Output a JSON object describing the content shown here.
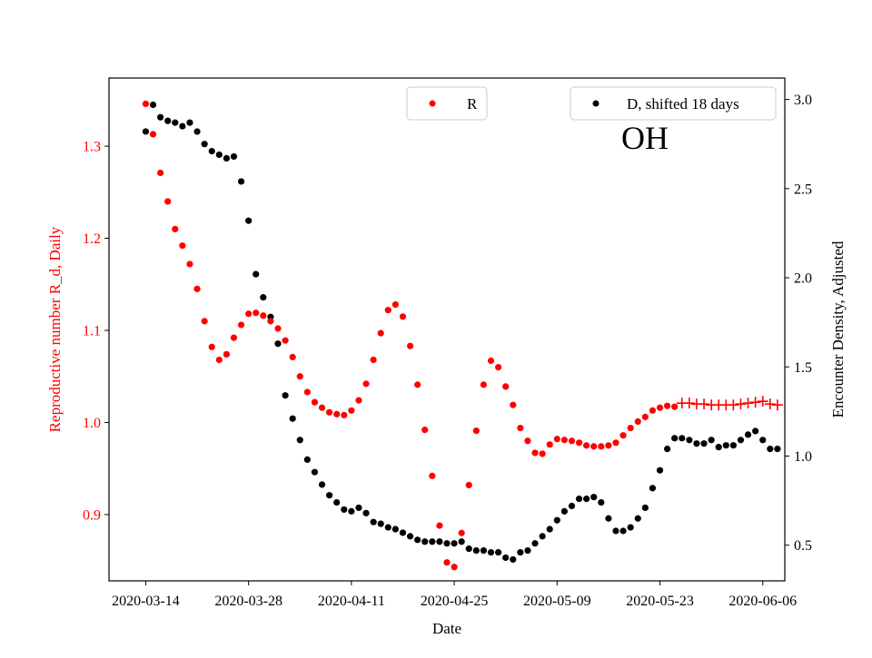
{
  "chart_data": {
    "type": "scatter",
    "title": "",
    "annotation": "OH",
    "xlabel": "Date",
    "ylabel_left": "Reproductive number R_d, Daily",
    "ylabel_right": "Encounter Density, Adjusted",
    "x_start_date": "2020-03-14",
    "x_ticks": [
      "2020-03-14",
      "2020-03-28",
      "2020-04-11",
      "2020-04-25",
      "2020-05-09",
      "2020-05-23",
      "2020-06-06"
    ],
    "x_lim": [
      "2020-03-09",
      "2020-06-09"
    ],
    "y_left_ticks": [
      "0.9",
      "1.0",
      "1.1",
      "1.2",
      "1.3"
    ],
    "y_left_lim": [
      0.828,
      1.374
    ],
    "y_right_ticks": [
      "0.5",
      "1.0",
      "1.5",
      "2.0",
      "2.5",
      "3.0"
    ],
    "y_right_lim": [
      0.3,
      3.12
    ],
    "colors": {
      "R": "#ff0000",
      "D": "#000000",
      "left_axis": "#ff0000",
      "right_axis": "#000000"
    },
    "legend_R": {
      "label": "R",
      "position": "top-center"
    },
    "legend_D": {
      "label": "D, shifted 18 days",
      "position": "top-right"
    },
    "series_R": {
      "x": [
        "2020-03-14",
        "2020-03-15",
        "2020-03-16",
        "2020-03-17",
        "2020-03-18",
        "2020-03-19",
        "2020-03-20",
        "2020-03-21",
        "2020-03-22",
        "2020-03-23",
        "2020-03-24",
        "2020-03-25",
        "2020-03-26",
        "2020-03-27",
        "2020-03-28",
        "2020-03-29",
        "2020-03-30",
        "2020-03-31",
        "2020-04-01",
        "2020-04-02",
        "2020-04-03",
        "2020-04-04",
        "2020-04-05",
        "2020-04-06",
        "2020-04-07",
        "2020-04-08",
        "2020-04-09",
        "2020-04-10",
        "2020-04-11",
        "2020-04-12",
        "2020-04-13",
        "2020-04-14",
        "2020-04-15",
        "2020-04-16",
        "2020-04-17",
        "2020-04-18",
        "2020-04-19",
        "2020-04-20",
        "2020-04-21",
        "2020-04-22",
        "2020-04-23",
        "2020-04-24",
        "2020-04-25",
        "2020-04-26",
        "2020-04-27",
        "2020-04-28",
        "2020-04-29",
        "2020-04-30",
        "2020-05-01",
        "2020-05-02",
        "2020-05-03",
        "2020-05-04",
        "2020-05-05",
        "2020-05-06",
        "2020-05-07",
        "2020-05-08",
        "2020-05-09",
        "2020-05-10",
        "2020-05-11",
        "2020-05-12",
        "2020-05-13",
        "2020-05-14",
        "2020-05-15",
        "2020-05-16",
        "2020-05-17",
        "2020-05-18",
        "2020-05-19",
        "2020-05-20",
        "2020-05-21",
        "2020-05-22",
        "2020-05-23",
        "2020-05-24",
        "2020-05-25"
      ],
      "y": [
        1.346,
        1.313,
        1.271,
        1.24,
        1.21,
        1.192,
        1.172,
        1.145,
        1.11,
        1.082,
        1.068,
        1.074,
        1.092,
        1.106,
        1.118,
        1.119,
        1.116,
        1.11,
        1.102,
        1.089,
        1.071,
        1.05,
        1.033,
        1.022,
        1.016,
        1.011,
        1.009,
        1.008,
        1.013,
        1.024,
        1.042,
        1.068,
        1.097,
        1.122,
        1.128,
        1.115,
        1.083,
        1.041,
        0.992,
        0.942,
        0.888,
        0.848,
        0.843,
        0.88,
        0.932,
        0.991,
        1.041,
        1.067,
        1.06,
        1.039,
        1.019,
        0.994,
        0.98,
        0.967,
        0.966,
        0.976,
        0.982,
        0.981,
        0.98,
        0.978,
        0.975,
        0.974,
        0.974,
        0.975,
        0.978,
        0.986,
        0.994,
        1.001,
        1.006,
        1.013,
        1.016,
        1.018,
        1.017
      ]
    },
    "series_R_projected": {
      "x": [
        "2020-05-26",
        "2020-05-27",
        "2020-05-28",
        "2020-05-29",
        "2020-05-30",
        "2020-05-31",
        "2020-06-01",
        "2020-06-02",
        "2020-06-03",
        "2020-06-04",
        "2020-06-05",
        "2020-06-06",
        "2020-06-07",
        "2020-06-08"
      ],
      "y": [
        1.021,
        1.021,
        1.02,
        1.02,
        1.019,
        1.019,
        1.019,
        1.019,
        1.02,
        1.021,
        1.022,
        1.023,
        1.02,
        1.019
      ]
    },
    "series_D": {
      "name": "D, shifted 18 days",
      "x": [
        "2020-03-14",
        "2020-03-15",
        "2020-03-16",
        "2020-03-17",
        "2020-03-18",
        "2020-03-19",
        "2020-03-20",
        "2020-03-21",
        "2020-03-22",
        "2020-03-23",
        "2020-03-24",
        "2020-03-25",
        "2020-03-26",
        "2020-03-27",
        "2020-03-28",
        "2020-03-29",
        "2020-03-30",
        "2020-03-31",
        "2020-04-01",
        "2020-04-02",
        "2020-04-03",
        "2020-04-04",
        "2020-04-05",
        "2020-04-06",
        "2020-04-07",
        "2020-04-08",
        "2020-04-09",
        "2020-04-10",
        "2020-04-11",
        "2020-04-12",
        "2020-04-13",
        "2020-04-14",
        "2020-04-15",
        "2020-04-16",
        "2020-04-17",
        "2020-04-18",
        "2020-04-19",
        "2020-04-20",
        "2020-04-21",
        "2020-04-22",
        "2020-04-23",
        "2020-04-24",
        "2020-04-25",
        "2020-04-26",
        "2020-04-27",
        "2020-04-28",
        "2020-04-29",
        "2020-04-30",
        "2020-05-01",
        "2020-05-02",
        "2020-05-03",
        "2020-05-04",
        "2020-05-05",
        "2020-05-06",
        "2020-05-07",
        "2020-05-08",
        "2020-05-09",
        "2020-05-10",
        "2020-05-11",
        "2020-05-12",
        "2020-05-13",
        "2020-05-14",
        "2020-05-15",
        "2020-05-16",
        "2020-05-17",
        "2020-05-18",
        "2020-05-19",
        "2020-05-20",
        "2020-05-21",
        "2020-05-22",
        "2020-05-23",
        "2020-05-24",
        "2020-05-25",
        "2020-05-26",
        "2020-05-27",
        "2020-05-28",
        "2020-05-29",
        "2020-05-30",
        "2020-05-31",
        "2020-06-01",
        "2020-06-02",
        "2020-06-03",
        "2020-06-04",
        "2020-06-05",
        "2020-06-06",
        "2020-06-07",
        "2020-06-08"
      ],
      "y": [
        2.82,
        2.97,
        2.9,
        2.88,
        2.87,
        2.85,
        2.87,
        2.82,
        2.75,
        2.71,
        2.69,
        2.67,
        2.68,
        2.54,
        2.32,
        2.02,
        1.89,
        1.78,
        1.63,
        1.34,
        1.21,
        1.09,
        0.98,
        0.91,
        0.84,
        0.78,
        0.74,
        0.7,
        0.69,
        0.71,
        0.68,
        0.63,
        0.62,
        0.6,
        0.59,
        0.57,
        0.55,
        0.53,
        0.52,
        0.52,
        0.52,
        0.51,
        0.51,
        0.52,
        0.48,
        0.47,
        0.47,
        0.46,
        0.46,
        0.43,
        0.42,
        0.46,
        0.47,
        0.51,
        0.55,
        0.59,
        0.64,
        0.69,
        0.72,
        0.76,
        0.76,
        0.77,
        0.74,
        0.65,
        0.58,
        0.58,
        0.6,
        0.65,
        0.71,
        0.82,
        0.92,
        1.04,
        1.1,
        1.1,
        1.09,
        1.07,
        1.07,
        1.09,
        1.05,
        1.06,
        1.06,
        1.09,
        1.12,
        1.14,
        1.09,
        1.04,
        1.04
      ]
    }
  }
}
